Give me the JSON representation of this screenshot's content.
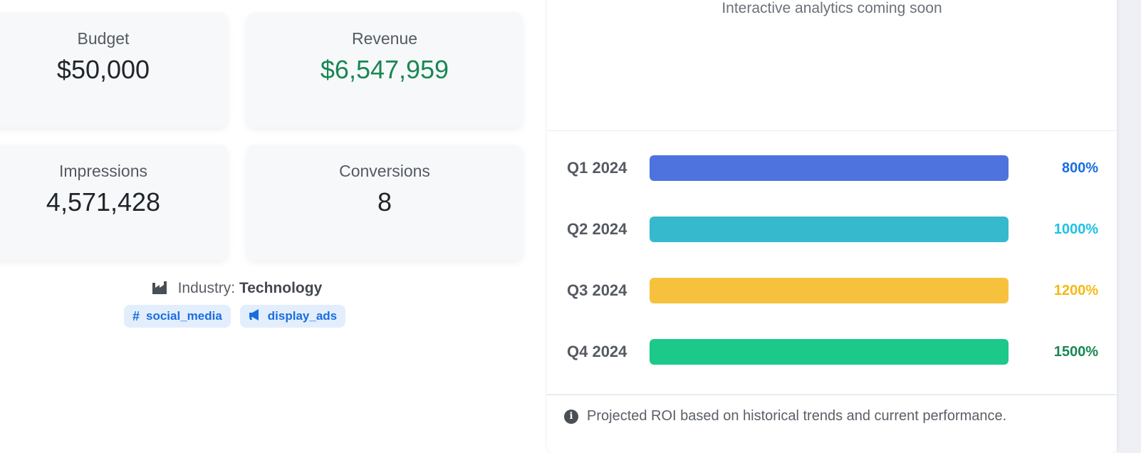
{
  "stats": {
    "budget": {
      "label": "Budget",
      "value": "$50,000"
    },
    "revenue": {
      "label": "Revenue",
      "value": "$6,547,959",
      "color": "#198754"
    },
    "impressions": {
      "label": "Impressions",
      "value": "4,571,428"
    },
    "conversions": {
      "label": "Conversions",
      "value": "8"
    }
  },
  "industry": {
    "icon": "industry-icon",
    "label": "Industry:",
    "value": "Technology"
  },
  "tags": [
    {
      "icon": "hashtag-icon",
      "glyph": "#",
      "label": "social_media"
    },
    {
      "icon": "bullhorn-icon",
      "glyph": "📢",
      "label": "display_ads"
    }
  ],
  "roi": {
    "analytics_note": "Interactive analytics coming soon",
    "rows": [
      {
        "label": "Q1 2024",
        "value": "800%",
        "fill_percent": 100,
        "bar_color": "#4e73df",
        "text_color": "#1a6de0"
      },
      {
        "label": "Q2 2024",
        "value": "1000%",
        "fill_percent": 100,
        "bar_color": "#36b9cc",
        "text_color": "#1fc1e6"
      },
      {
        "label": "Q3 2024",
        "value": "1200%",
        "fill_percent": 100,
        "bar_color": "#f6c23e",
        "text_color": "#f5b914"
      },
      {
        "label": "Q4 2024",
        "value": "1500%",
        "fill_percent": 100,
        "bar_color": "#1cc88a",
        "text_color": "#198754"
      }
    ],
    "footer": {
      "icon": "info-icon",
      "text": "Projected ROI based on historical trends and current performance."
    }
  }
}
